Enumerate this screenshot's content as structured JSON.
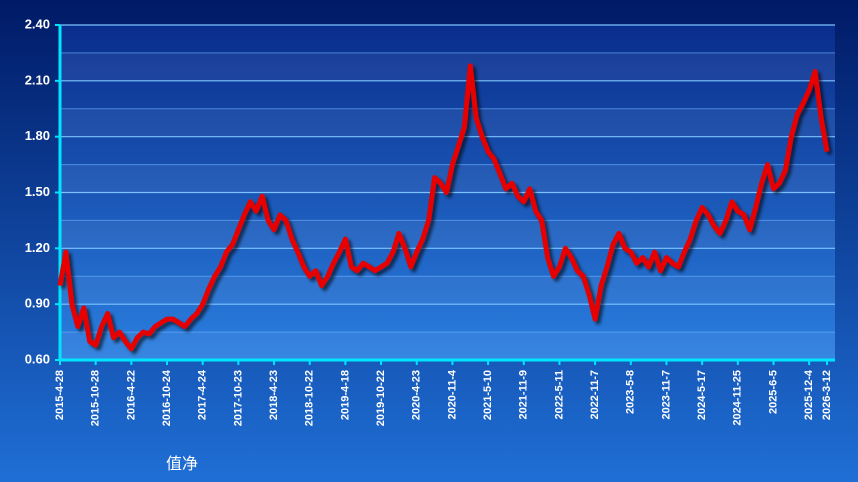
{
  "chart_data": {
    "type": "line",
    "categories": [
      "2015-4-28",
      null,
      null,
      null,
      null,
      null,
      "2015-10-28",
      null,
      null,
      null,
      null,
      null,
      "2016-4-22",
      null,
      null,
      null,
      null,
      null,
      "2016-10-24",
      null,
      null,
      null,
      null,
      null,
      "2017-4-24",
      null,
      null,
      null,
      null,
      null,
      "2017-10-23",
      null,
      null,
      null,
      null,
      null,
      "2018-4-23",
      null,
      null,
      null,
      null,
      null,
      "2018-10-22",
      null,
      null,
      null,
      null,
      null,
      "2019-4-18",
      null,
      null,
      null,
      null,
      null,
      "2019-10-22",
      null,
      null,
      null,
      null,
      null,
      "2020-4-23",
      null,
      null,
      null,
      null,
      null,
      "2020-11-4",
      null,
      null,
      null,
      null,
      null,
      "2021-5-10",
      null,
      null,
      null,
      null,
      null,
      "2021-11-9",
      null,
      null,
      null,
      null,
      null,
      "2022-5-11",
      null,
      null,
      null,
      null,
      null,
      "2022-11-7",
      null,
      null,
      null,
      null,
      null,
      "2023-5-8",
      null,
      null,
      null,
      null,
      null,
      "2023-11-7",
      null,
      null,
      null,
      null,
      null,
      "2024-5-17",
      null,
      null,
      null,
      null,
      null,
      "2024-11-25",
      null,
      null,
      null,
      null,
      null,
      "2025-6-5",
      null,
      null,
      null,
      null,
      null,
      "2025-12-4",
      null,
      null,
      "2026-3-12"
    ],
    "series": [
      {
        "name": "值净",
        "color": "#e60000",
        "values": [
          1.0,
          1.18,
          0.9,
          0.78,
          0.88,
          0.7,
          0.68,
          0.78,
          0.85,
          0.72,
          0.75,
          0.7,
          0.66,
          0.72,
          0.75,
          0.74,
          0.78,
          0.8,
          0.82,
          0.82,
          0.8,
          0.78,
          0.82,
          0.85,
          0.9,
          0.98,
          1.05,
          1.1,
          1.18,
          1.22,
          1.3,
          1.38,
          1.45,
          1.4,
          1.48,
          1.35,
          1.3,
          1.38,
          1.35,
          1.25,
          1.18,
          1.1,
          1.05,
          1.08,
          1.0,
          1.05,
          1.12,
          1.18,
          1.25,
          1.1,
          1.08,
          1.12,
          1.1,
          1.08,
          1.1,
          1.12,
          1.18,
          1.28,
          1.2,
          1.1,
          1.18,
          1.25,
          1.35,
          1.58,
          1.55,
          1.5,
          1.65,
          1.75,
          1.85,
          2.18,
          1.9,
          1.8,
          1.72,
          1.68,
          1.6,
          1.52,
          1.55,
          1.48,
          1.45,
          1.52,
          1.4,
          1.35,
          1.15,
          1.05,
          1.1,
          1.2,
          1.15,
          1.08,
          1.05,
          0.95,
          0.82,
          1.0,
          1.1,
          1.22,
          1.28,
          1.2,
          1.18,
          1.12,
          1.15,
          1.1,
          1.18,
          1.08,
          1.15,
          1.12,
          1.1,
          1.18,
          1.25,
          1.35,
          1.42,
          1.38,
          1.32,
          1.28,
          1.35,
          1.45,
          1.4,
          1.38,
          1.3,
          1.42,
          1.55,
          1.65,
          1.52,
          1.55,
          1.62,
          1.8,
          1.92,
          1.98,
          2.05,
          2.15,
          1.9,
          1.72
        ]
      }
    ],
    "ylim": [
      0.6,
      2.4
    ],
    "yticks": [
      {
        "value": 0.6,
        "label": "0.60"
      },
      {
        "value": 0.9,
        "label": "0.90"
      },
      {
        "value": 1.2,
        "label": "1.20"
      },
      {
        "value": 1.5,
        "label": "1.50"
      },
      {
        "value": 1.8,
        "label": "1.80"
      },
      {
        "value": 2.1,
        "label": "2.10"
      },
      {
        "value": 2.4,
        "label": "2.40"
      }
    ],
    "grid": true,
    "legend": "bottom-left"
  }
}
